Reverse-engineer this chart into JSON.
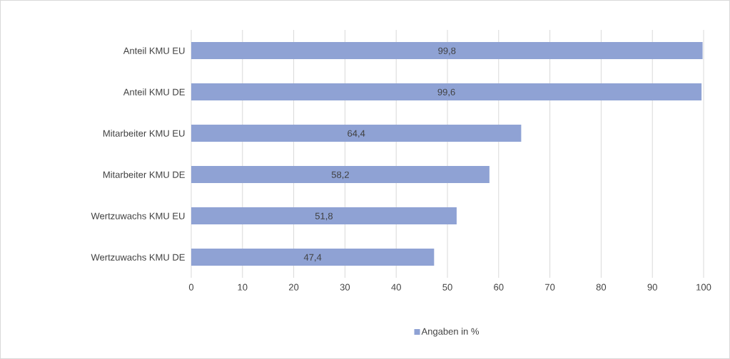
{
  "chart_data": {
    "type": "bar",
    "orientation": "horizontal",
    "categories": [
      "Anteil KMU EU",
      "Anteil KMU DE",
      "Mitarbeiter KMU EU",
      "Mitarbeiter KMU DE",
      "Wertzuwachs KMU EU",
      "Wertzuwachs KMU DE"
    ],
    "series": [
      {
        "name": "Angaben in %",
        "color": "#8fa2d4",
        "values": [
          99.8,
          99.6,
          64.4,
          58.2,
          51.8,
          47.4
        ],
        "value_labels": [
          "99,8",
          "99,6",
          "64,4",
          "58,2",
          "51,8",
          "47,4"
        ]
      }
    ],
    "xlim": [
      0,
      100
    ],
    "xticks": [
      0,
      10,
      20,
      30,
      40,
      50,
      60,
      70,
      80,
      90,
      100
    ],
    "grid": "x",
    "legend": "bottom"
  }
}
